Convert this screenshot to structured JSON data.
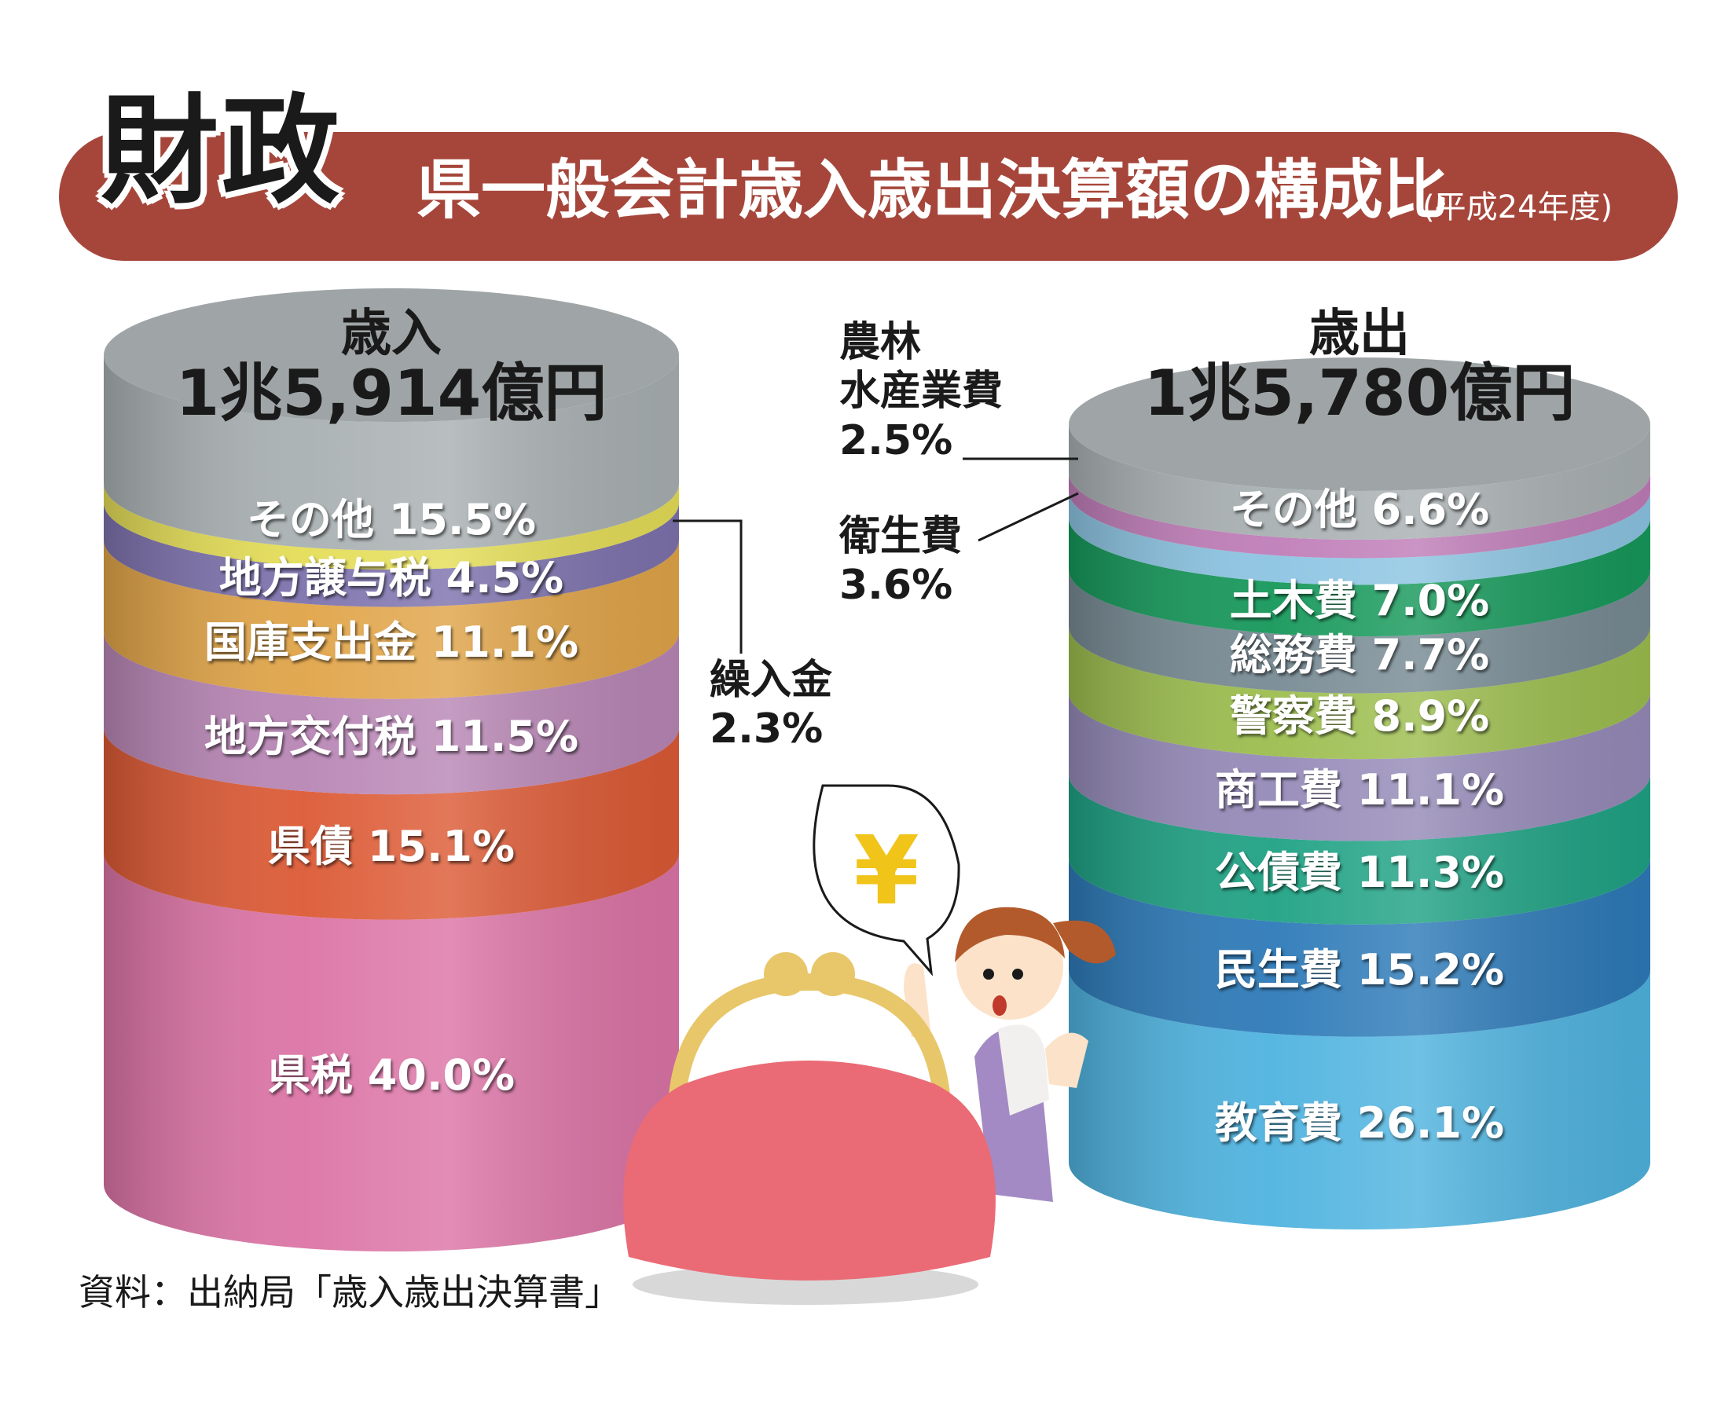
{
  "header": {
    "big_title": "財政",
    "title": "県一般会計歳入歳出決算額の構成比",
    "year": "(平成24年度)"
  },
  "source": "資料：出納局「歳入歳出決算書」",
  "revenue": {
    "label": "歳入",
    "total": "1兆5,914億円"
  },
  "expenditure": {
    "label": "歳出",
    "total": "1兆5,780億円"
  },
  "callouts": {
    "kurinyukin": {
      "name_line1": "繰入金",
      "value": "2.3%"
    },
    "norin": {
      "name_line1": "農林",
      "name_line2": "水産業費",
      "value": "2.5%"
    },
    "eisei": {
      "name_line1": "衛生費",
      "value": "3.6%"
    }
  },
  "colors": {
    "header": "#a6463b",
    "revenue_top": "#9aa1a4",
    "expenditure_top": "#9aa1a4"
  },
  "icons": [
    "yen-speech-bubble-icon",
    "coin-purse-icon",
    "girl-character-icon"
  ],
  "chart_data": [
    {
      "type": "stacked-cylinder",
      "title": "歳入",
      "total": "1兆5,914億円",
      "unit": "%",
      "segments": [
        {
          "name": "その他",
          "value": 15.5,
          "label": "その他 15.5%",
          "color": "#a9b0b2"
        },
        {
          "name": "繰入金",
          "value": 2.3,
          "label": "",
          "color": "#e4dd57"
        },
        {
          "name": "地方譲与税",
          "value": 4.5,
          "label": "地方譲与税 4.5%",
          "color": "#7d72ad"
        },
        {
          "name": "国庫支出金",
          "value": 11.1,
          "label": "国庫支出金 11.1%",
          "color": "#e0a448"
        },
        {
          "name": "地方交付税",
          "value": 11.5,
          "label": "地方交付税 11.5%",
          "color": "#b886b5"
        },
        {
          "name": "県債",
          "value": 15.1,
          "label": "県債 15.1%",
          "color": "#dc5a35"
        },
        {
          "name": "県税",
          "value": 40.0,
          "label": "県税 40.0%",
          "color": "#dc74a6"
        }
      ]
    },
    {
      "type": "stacked-cylinder",
      "title": "歳出",
      "total": "1兆5,780億円",
      "unit": "%",
      "segments": [
        {
          "name": "その他",
          "value": 6.6,
          "label": "その他 6.6%",
          "color": "#a9b0b2"
        },
        {
          "name": "農林水産業費",
          "value": 2.5,
          "label": "",
          "color": "#bf7db8"
        },
        {
          "name": "衛生費",
          "value": 3.6,
          "label": "",
          "color": "#8cc4e2"
        },
        {
          "name": "土木費",
          "value": 7.0,
          "label": "土木費 7.0%",
          "color": "#16985a"
        },
        {
          "name": "総務費",
          "value": 7.7,
          "label": "総務費 7.7%",
          "color": "#778a93"
        },
        {
          "name": "警察費",
          "value": 8.9,
          "label": "警察費 8.9%",
          "color": "#9cbd4e"
        },
        {
          "name": "商工費",
          "value": 11.1,
          "label": "商工費 11.1%",
          "color": "#958ab8"
        },
        {
          "name": "公債費",
          "value": 11.3,
          "label": "公債費 11.3%",
          "color": "#1fa284"
        },
        {
          "name": "民生費",
          "value": 15.2,
          "label": "民生費 15.2%",
          "color": "#2d7ab8"
        },
        {
          "name": "教育費",
          "value": 26.1,
          "label": "教育費 26.1%",
          "color": "#4fb3df"
        }
      ]
    }
  ]
}
